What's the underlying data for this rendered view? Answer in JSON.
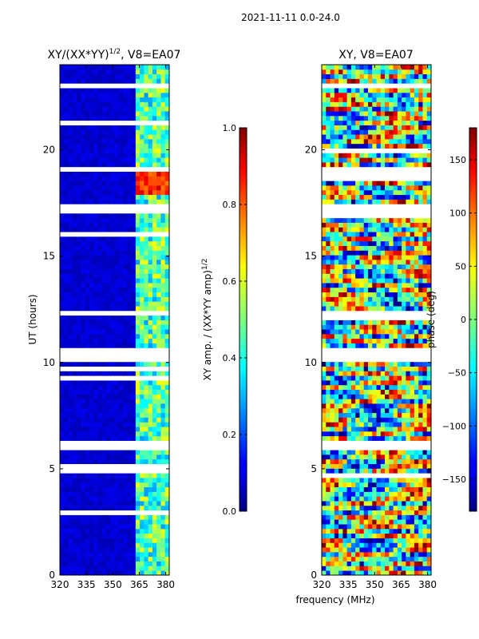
{
  "figure_title": "2021-11-11 0.0-24.0",
  "xlabel": "frequency (MHz)",
  "chart_data": [
    {
      "type": "heatmap",
      "title": "XY/(XX*YY)",
      "title_exponent": "1/2",
      "title_suffix": ", V8=EA07",
      "xlabel": "",
      "ylabel": "UT (hours)",
      "xlim": [
        320,
        382
      ],
      "ylim": [
        0,
        24
      ],
      "xticks": [
        320,
        335,
        350,
        365,
        380
      ],
      "yticks": [
        0,
        5,
        10,
        15,
        20
      ],
      "colorbar": {
        "label": "XY amp. / (XX*YY amp)",
        "label_exponent": "1/2",
        "range": [
          0.0,
          1.0
        ],
        "ticks": [
          "0.0",
          "0.2",
          "0.4",
          "0.6",
          "0.8",
          "1.0"
        ],
        "colormap": "jet"
      },
      "gaps_hours": [
        [
          10.05,
          10.7
        ],
        [
          12.3,
          12.5
        ],
        [
          17.1,
          17.5
        ],
        [
          18.9,
          19.2
        ],
        [
          6.0,
          6.3
        ],
        [
          23.0,
          23.2
        ]
      ],
      "high_band_mhz": [
        363,
        382
      ],
      "high_band_value": 0.45,
      "low_band_value": 0.05
    },
    {
      "type": "heatmap",
      "title": "XY, V8=EA07",
      "xlabel": "",
      "ylabel": "",
      "xlim": [
        320,
        382
      ],
      "ylim": [
        0,
        24
      ],
      "xticks": [
        320,
        335,
        350,
        365,
        380
      ],
      "yticks": [
        0,
        5,
        10,
        15,
        20
      ],
      "colorbar": {
        "label": "phase (deg)",
        "range": [
          -180,
          180
        ],
        "ticks": [
          "−150",
          "−100",
          "−50",
          "0",
          "50",
          "100",
          "150"
        ],
        "tick_values": [
          -150,
          -100,
          -50,
          0,
          50,
          100,
          150
        ],
        "colormap": "jet"
      },
      "gaps_hours": [
        [
          10.05,
          10.7
        ],
        [
          12.3,
          12.5
        ],
        [
          17.1,
          17.5
        ],
        [
          18.9,
          19.2
        ],
        [
          6.0,
          6.3
        ],
        [
          23.0,
          23.2
        ]
      ]
    }
  ]
}
